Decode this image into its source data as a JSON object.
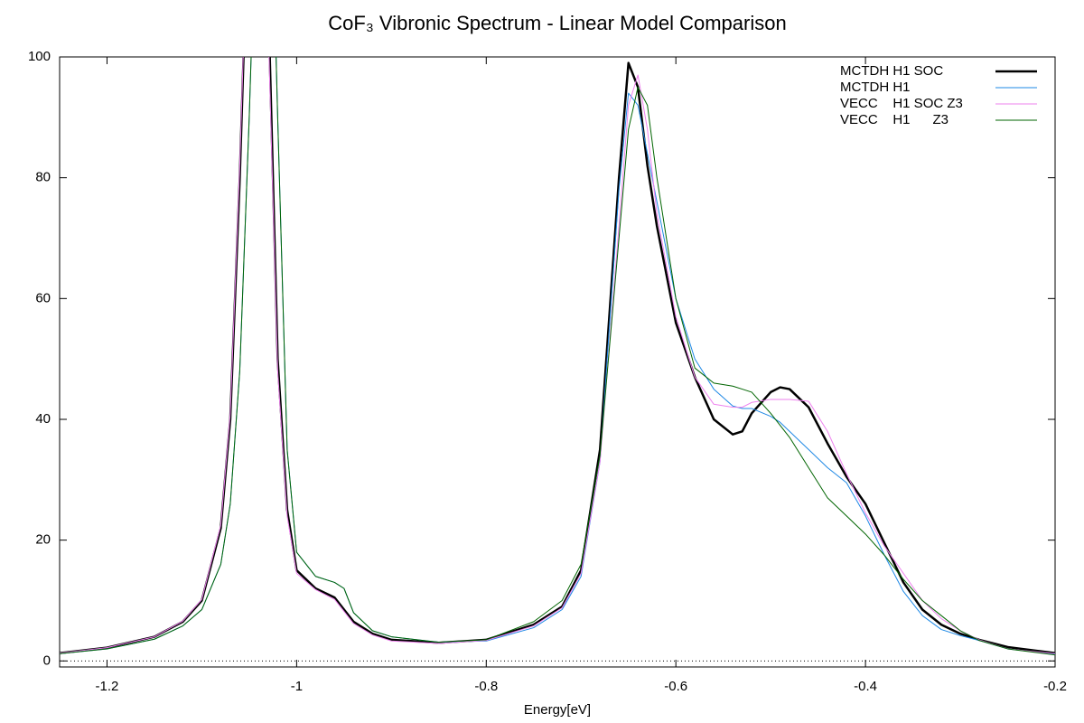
{
  "chart_data": {
    "type": "line",
    "title": "CoF₃ Vibronic Spectrum - Linear Model Comparison",
    "x_label": "Energy[eV]",
    "xlim": [
      -1.25,
      -0.2
    ],
    "ylim": [
      -1,
      100
    ],
    "xticks": [
      -1.2,
      -1,
      -0.8,
      -0.6,
      -0.4,
      -0.2
    ],
    "yticks": [
      0,
      20,
      40,
      60,
      80,
      100
    ],
    "zero_line": true,
    "legend": "top-right",
    "x": [
      -1.25,
      -1.2,
      -1.15,
      -1.12,
      -1.1,
      -1.08,
      -1.07,
      -1.06,
      -1.05,
      -1.04,
      -1.03,
      -1.02,
      -1.01,
      -1.0,
      -0.98,
      -0.96,
      -0.95,
      -0.94,
      -0.92,
      -0.9,
      -0.85,
      -0.8,
      -0.75,
      -0.72,
      -0.7,
      -0.68,
      -0.66,
      -0.65,
      -0.64,
      -0.63,
      -0.62,
      -0.6,
      -0.58,
      -0.56,
      -0.54,
      -0.53,
      -0.52,
      -0.5,
      -0.49,
      -0.48,
      -0.46,
      -0.44,
      -0.42,
      -0.4,
      -0.38,
      -0.36,
      -0.34,
      -0.32,
      -0.3,
      -0.28,
      -0.25,
      -0.2
    ],
    "series": [
      {
        "name": "MCTDH H1 SOC",
        "color": "#000000",
        "width": 2.5,
        "values": [
          1.3,
          2.2,
          4,
          6.5,
          10,
          22,
          40,
          80,
          130,
          150,
          110,
          50,
          25,
          15,
          12,
          10.5,
          8.5,
          6.5,
          4.5,
          3.5,
          3,
          3.5,
          6,
          9,
          15,
          35,
          80,
          99,
          95,
          82,
          72,
          56,
          47,
          40,
          37.5,
          38,
          41,
          44.5,
          45.3,
          45,
          42,
          36,
          30.5,
          26,
          19.5,
          13,
          8.5,
          6,
          4.5,
          3.5,
          2.3,
          1.3
        ]
      },
      {
        "name": "MCTDH H1",
        "color": "#1e88e5",
        "width": 1,
        "values": [
          1.2,
          2,
          3.6,
          5.8,
          8.5,
          16,
          26,
          48,
          90,
          140,
          150,
          90,
          35,
          18,
          14,
          13,
          12,
          8,
          5,
          4,
          3.1,
          3.3,
          5.5,
          8.5,
          14,
          33,
          78,
          94,
          92,
          84,
          76,
          60,
          50,
          45,
          42.2,
          41.8,
          41.8,
          40.5,
          39.5,
          38,
          35,
          32,
          29.5,
          24,
          17.5,
          11.5,
          7.5,
          5.2,
          4.2,
          3.4,
          2,
          1.1
        ]
      },
      {
        "name": "VECC    H1 SOC Z3",
        "color": "#ee82ee",
        "width": 1,
        "values": [
          1.3,
          2.2,
          4,
          6.6,
          10.2,
          22.5,
          41,
          82,
          132,
          148,
          105,
          48,
          24,
          14.5,
          11.8,
          10.2,
          8.2,
          6.2,
          4.3,
          3.3,
          2.9,
          3.4,
          5.8,
          8.8,
          14.5,
          33,
          72,
          92,
          97,
          88,
          74,
          57,
          47,
          42.5,
          42,
          42,
          42.8,
          43.3,
          43.3,
          43.3,
          43,
          38,
          31,
          24.5,
          19,
          14.5,
          10,
          7,
          5,
          3.5,
          2,
          1.2
        ]
      },
      {
        "name": "VECC    H1      Z3",
        "color": "#006400",
        "width": 1,
        "values": [
          1.2,
          2,
          3.6,
          5.8,
          8.5,
          16,
          26,
          48,
          90,
          140,
          150,
          90,
          35,
          18,
          14,
          13,
          12,
          8,
          5,
          4,
          3.1,
          3.5,
          6.5,
          10,
          16,
          34,
          70,
          88,
          95,
          92,
          80,
          60,
          48.5,
          46,
          45.5,
          45,
          44.5,
          41,
          39,
          37,
          32,
          27,
          24,
          21,
          17.5,
          13.5,
          10,
          7.5,
          5,
          3.4,
          2,
          1
        ]
      }
    ]
  }
}
